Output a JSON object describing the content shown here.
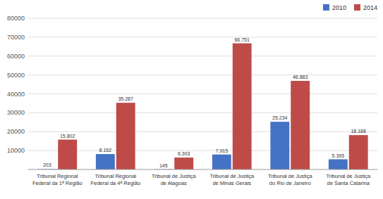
{
  "chart_data": {
    "type": "bar",
    "categories": [
      "Tribunal Regional\nFederal da 1ª Região",
      "Tribunal Regional\nFederal da 4ª Região",
      "Tribunal de Justiça\nde Alagoas",
      "Tribunal de Justiça\nde Minas Gerais",
      "Tribunal de Justiça\ndo Rio de Janeiro",
      "Tribunal de Justiça\nde Santa Catarina"
    ],
    "series": [
      {
        "name": "2010",
        "color": "#4472C4",
        "values": [
          203,
          8152,
          145,
          7915,
          25234,
          5395
        ],
        "value_labels": [
          "203",
          "8.152",
          "145",
          "7.915",
          "25.234",
          "5.395"
        ]
      },
      {
        "name": "2014",
        "color": "#BE4B48",
        "values": [
          15802,
          35287,
          6303,
          66751,
          46883,
          18188
        ],
        "value_labels": [
          "15.802",
          "35.287",
          "6.303",
          "66.751",
          "46.883",
          "18.188"
        ]
      }
    ],
    "ylim": [
      0,
      80000
    ],
    "yticks": [
      10000,
      20000,
      30000,
      40000,
      50000,
      60000,
      70000,
      80000
    ],
    "grid": true,
    "legend": "top",
    "data_labels": true
  }
}
